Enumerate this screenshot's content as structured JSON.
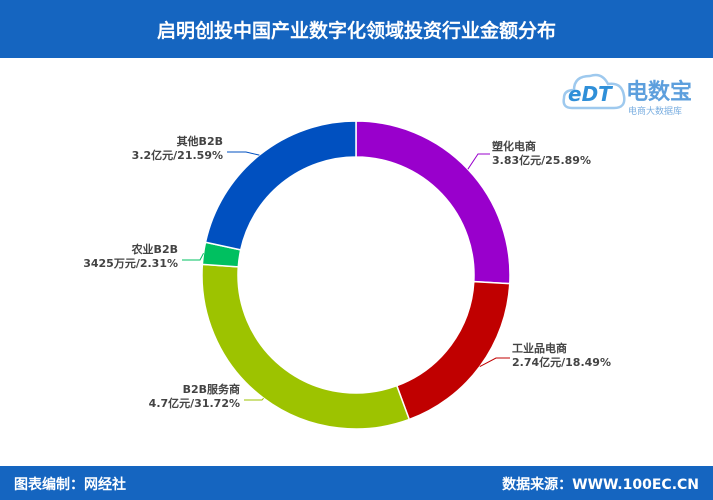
{
  "header": {
    "title": "启明创投中国产业数字化领域投资行业金额分布"
  },
  "footer": {
    "editor": "图表编制：网经社",
    "source": "数据来源：WWW.100EC.CN"
  },
  "logo": {
    "mark": "eDT",
    "name": "电数宝",
    "sub": "电商大数据库"
  },
  "colors": {
    "header_bg": "#1565c0"
  },
  "chart_data": {
    "type": "pie",
    "donut": true,
    "title": "启明创投中国产业数字化领域投资行业金额分布",
    "slices": [
      {
        "name": "塑化电商",
        "label": "3.83亿元/25.89%",
        "percent": 25.89,
        "color": "#9900cc"
      },
      {
        "name": "工业品电商",
        "label": "2.74亿元/18.49%",
        "percent": 18.49,
        "color": "#c00000"
      },
      {
        "name": "B2B服务商",
        "label": "4.7亿元/31.72%",
        "percent": 31.72,
        "color": "#9dc300"
      },
      {
        "name": "农业B2B",
        "label": "3425万元/2.31%",
        "percent": 2.31,
        "color": "#00c060"
      },
      {
        "name": "其他B2B",
        "label": "3.2亿元/21.59%",
        "percent": 21.59,
        "color": "#0050c0"
      }
    ]
  }
}
